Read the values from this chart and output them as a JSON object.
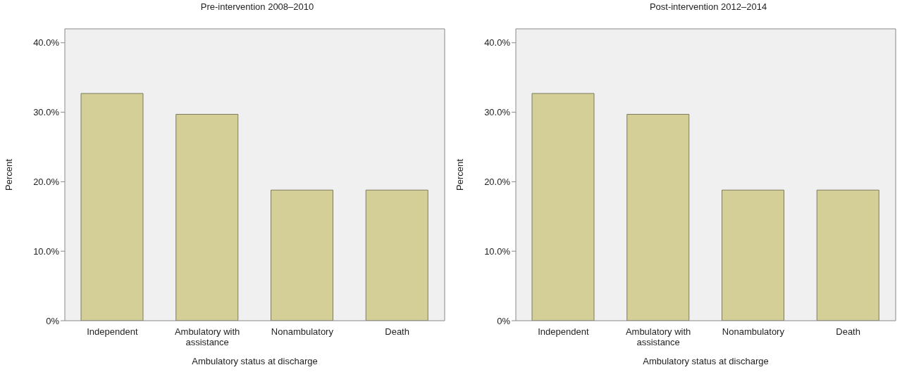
{
  "chart_data": [
    {
      "type": "bar",
      "title": "Pre-intervention 2008–2010",
      "xlabel": "Ambulatory status at discharge",
      "ylabel": "Percent",
      "categories": [
        "Independent",
        "Ambulatory with assistance",
        "Nonambulatory",
        "Death"
      ],
      "values": [
        32.7,
        29.7,
        18.8,
        18.8
      ],
      "color": "#d4cf97",
      "ylim": [
        0,
        42
      ],
      "yticks": [
        {
          "value": 0,
          "label": "0%"
        },
        {
          "value": 10,
          "label": "10.0%"
        },
        {
          "value": 20,
          "label": "20.0%"
        },
        {
          "value": 30,
          "label": "30.0%"
        },
        {
          "value": 40,
          "label": "40.0%"
        }
      ],
      "grid": false,
      "legend": false
    },
    {
      "type": "bar",
      "title": "Post-intervention 2012–2014",
      "xlabel": "Ambulatory status at discharge",
      "ylabel": "Percent",
      "categories": [
        "Independent",
        "Ambulatory with assistance",
        "Nonambulatory",
        "Death"
      ],
      "values": [
        32.7,
        29.7,
        18.8,
        18.8
      ],
      "color": "#d4cf97",
      "ylim": [
        0,
        42
      ],
      "yticks": [
        {
          "value": 0,
          "label": "0%"
        },
        {
          "value": 10,
          "label": "10.0%"
        },
        {
          "value": 20,
          "label": "20.0%"
        },
        {
          "value": 30,
          "label": "30.0%"
        },
        {
          "value": 40,
          "label": "40.0%"
        }
      ],
      "grid": false,
      "legend": false
    }
  ]
}
